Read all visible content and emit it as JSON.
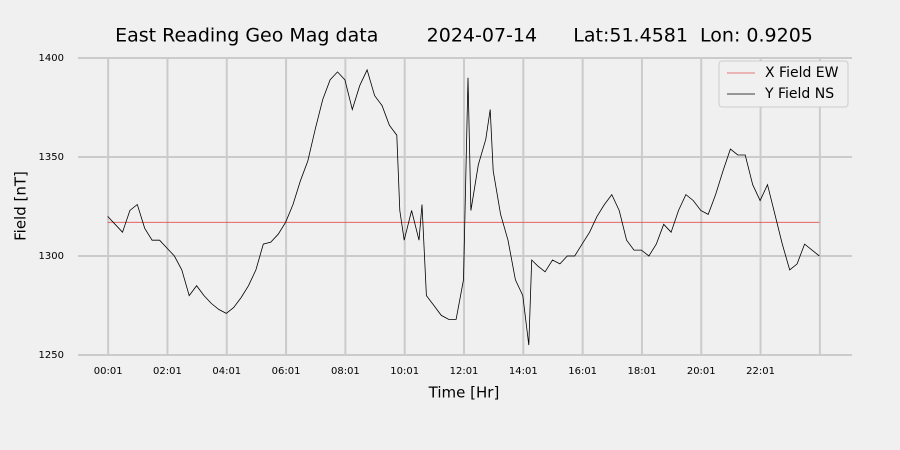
{
  "chart_data": {
    "type": "line",
    "title": "East Reading Geo Mag data        2024-07-14      Lat:51.4581  Lon: 0.9205",
    "x_label": "Time  [Hr]",
    "y_label": "Field  [nT]",
    "xlim": [
      -1.0,
      25.1
    ],
    "ylim": [
      1250,
      1400
    ],
    "yticks": [
      1250,
      1300,
      1350,
      1400
    ],
    "xticks": [
      {
        "value": 0.0167,
        "label": "00:01"
      },
      {
        "value": 2.0167,
        "label": "02:01"
      },
      {
        "value": 4.0167,
        "label": "04:01"
      },
      {
        "value": 6.0167,
        "label": "06:01"
      },
      {
        "value": 8.0167,
        "label": "08:01"
      },
      {
        "value": 10.0167,
        "label": "10:01"
      },
      {
        "value": 12.0167,
        "label": "12:01"
      },
      {
        "value": 14.0167,
        "label": "14:01"
      },
      {
        "value": 16.0167,
        "label": "16:01"
      },
      {
        "value": 18.0167,
        "label": "18:01"
      },
      {
        "value": 20.0167,
        "label": "20:01"
      },
      {
        "value": 22.0167,
        "label": "22:01"
      },
      {
        "value": 24.0167,
        "label": null
      }
    ],
    "grid": true,
    "legend": "upper right",
    "series": [
      {
        "name": "X Field EW",
        "color": "#e05050",
        "x": [
          0,
          24
        ],
        "values": [
          1317,
          1317
        ]
      },
      {
        "name": "Y Field NS",
        "color": "#000000",
        "x": [
          0,
          0.25,
          0.5,
          0.75,
          1.0,
          1.25,
          1.5,
          1.75,
          2.0,
          2.25,
          2.5,
          2.75,
          3.0,
          3.25,
          3.5,
          3.75,
          4.0,
          4.25,
          4.5,
          4.75,
          5.0,
          5.25,
          5.5,
          5.75,
          6.0,
          6.25,
          6.5,
          6.75,
          7.0,
          7.25,
          7.5,
          7.75,
          8.0,
          8.25,
          8.5,
          8.75,
          9.0,
          9.25,
          9.5,
          9.75,
          9.85,
          10.0,
          10.25,
          10.5,
          10.6,
          10.75,
          11.0,
          11.25,
          11.5,
          11.75,
          12.0,
          12.15,
          12.25,
          12.5,
          12.75,
          12.9,
          13.0,
          13.25,
          13.5,
          13.75,
          14.0,
          14.2,
          14.3,
          14.5,
          14.75,
          15.0,
          15.25,
          15.5,
          15.75,
          16.0,
          16.25,
          16.5,
          16.75,
          17.0,
          17.25,
          17.5,
          17.75,
          18.0,
          18.25,
          18.5,
          18.75,
          19.0,
          19.25,
          19.5,
          19.75,
          20.0,
          20.25,
          20.5,
          20.75,
          21.0,
          21.25,
          21.5,
          21.75,
          22.0,
          22.25,
          22.5,
          22.75,
          23.0,
          23.25,
          23.5,
          23.75,
          24.0
        ],
        "values": [
          1320,
          1316,
          1312,
          1323,
          1326,
          1314,
          1308,
          1308,
          1304,
          1300,
          1293,
          1280,
          1285,
          1280,
          1276,
          1273,
          1271,
          1274,
          1279,
          1285,
          1293,
          1306,
          1307,
          1311,
          1317,
          1326,
          1338,
          1348,
          1364,
          1379,
          1389,
          1393,
          1389,
          1374,
          1386,
          1394,
          1381,
          1376,
          1366,
          1361,
          1323,
          1308,
          1323,
          1308,
          1326,
          1280,
          1275,
          1270,
          1268,
          1268,
          1288,
          1390,
          1323,
          1346,
          1359,
          1374,
          1343,
          1321,
          1308,
          1288,
          1280,
          1255,
          1298,
          1295,
          1292,
          1298,
          1296,
          1300,
          1300,
          1306,
          1312,
          1320,
          1326,
          1331,
          1323,
          1308,
          1303,
          1303,
          1300,
          1306,
          1316,
          1312,
          1323,
          1331,
          1328,
          1323,
          1321,
          1331,
          1343,
          1354,
          1351,
          1351,
          1336,
          1328,
          1336,
          1321,
          1306,
          1293,
          1296,
          1306,
          1303,
          1300
        ]
      }
    ]
  }
}
